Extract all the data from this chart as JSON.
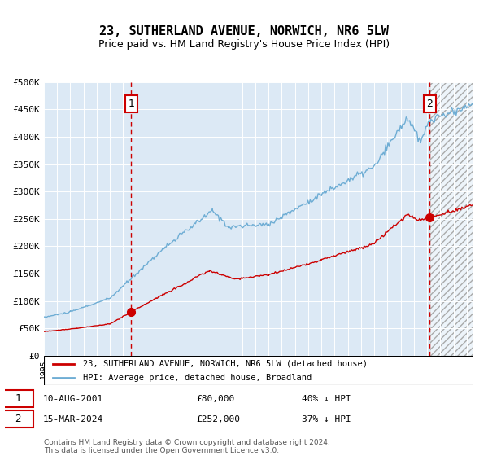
{
  "title": "23, SUTHERLAND AVENUE, NORWICH, NR6 5LW",
  "subtitle": "Price paid vs. HM Land Registry's House Price Index (HPI)",
  "legend_line1": "23, SUTHERLAND AVENUE, NORWICH, NR6 5LW (detached house)",
  "legend_line2": "HPI: Average price, detached house, Broadland",
  "annotation1": {
    "label": "1",
    "date": "10-AUG-2001",
    "price": "£80,000",
    "hpi": "40% ↓ HPI"
  },
  "annotation2": {
    "label": "2",
    "date": "15-MAR-2024",
    "price": "£252,000",
    "hpi": "37% ↓ HPI"
  },
  "footer": "Contains HM Land Registry data © Crown copyright and database right 2024.\nThis data is licensed under the Open Government Licence v3.0.",
  "ylim": [
    0,
    500000
  ],
  "yticks": [
    0,
    50000,
    100000,
    150000,
    200000,
    250000,
    300000,
    350000,
    400000,
    450000,
    500000
  ],
  "bg_color": "#dce9f5",
  "plot_bg": "#dce9f5",
  "hpi_color": "#6eadd4",
  "price_color": "#cc0000",
  "marker_color": "#cc0000",
  "vline_color": "#cc0000",
  "marker1_x": 2001.6,
  "marker1_y": 80000,
  "marker2_x": 2024.2,
  "marker2_y": 252000,
  "future_shade_start": 2024.25,
  "xmin": 1995.0,
  "xmax": 2027.5
}
